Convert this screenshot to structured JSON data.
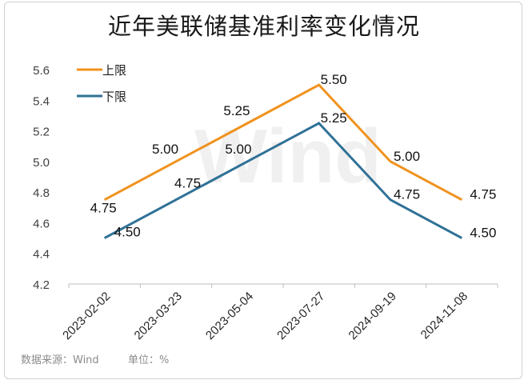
{
  "title": "近年美联储基准利率变化情况",
  "footer": {
    "source": "数据来源：Wind",
    "unit": "单位：%"
  },
  "watermark": "Wind",
  "chart_data": {
    "type": "line",
    "categories": [
      "2023-02-02",
      "2023-03-23",
      "2023-05-04",
      "2023-07-27",
      "2024-09-19",
      "2024-11-08"
    ],
    "ylim": [
      4.2,
      5.6
    ],
    "yticks": [
      "4.2",
      "4.4",
      "4.6",
      "4.8",
      "5.0",
      "5.2",
      "5.4",
      "5.6"
    ],
    "grid": false,
    "legend_position": "top-left",
    "series": [
      {
        "name": "上限",
        "color": "#f0921e",
        "values": [
          4.75,
          5.0,
          5.25,
          5.5,
          5.0,
          4.75
        ],
        "labels": [
          "4.75",
          "5.00",
          "5.25",
          "5.50",
          "5.00",
          "4.75"
        ]
      },
      {
        "name": "下限",
        "color": "#2f7196",
        "values": [
          4.5,
          4.75,
          5.0,
          5.25,
          4.75,
          4.5
        ],
        "labels": [
          "4.50",
          "4.75",
          "5.00",
          "5.25",
          "4.75",
          "4.50"
        ]
      }
    ]
  }
}
